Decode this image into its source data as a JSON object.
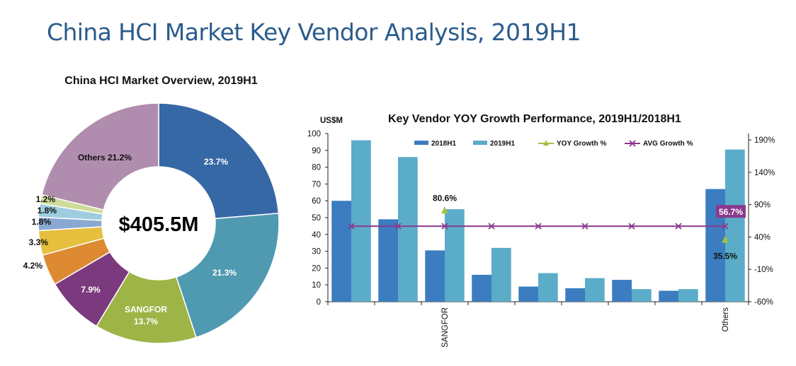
{
  "header": {
    "title": "China HCI Market Key Vendor Analysis, 2019H1"
  },
  "chart_data": [
    {
      "type": "pie",
      "title": "China HCI Market Overview, 2019H1",
      "center_label": "$405.5M",
      "slices": [
        {
          "label": "",
          "display": "23.7%",
          "value": 23.7,
          "color": "#3568a5"
        },
        {
          "label": "",
          "display": "21.3%",
          "value": 21.3,
          "color": "#4f9ab0"
        },
        {
          "label": "SANGFOR",
          "display": "13.7%",
          "value": 13.7,
          "color": "#9eb446"
        },
        {
          "label": "",
          "display": "7.9%",
          "value": 7.9,
          "color": "#7c3a7e"
        },
        {
          "label": "",
          "display": "4.2%",
          "value": 4.2,
          "color": "#dd8a32"
        },
        {
          "label": "",
          "display": "3.3%",
          "value": 3.3,
          "color": "#e5bf3d"
        },
        {
          "label": "",
          "display": "1.8%",
          "value": 1.8,
          "color": "#8aa9d2"
        },
        {
          "label": "",
          "display": "1.8%",
          "value": 1.8,
          "color": "#9ecde0"
        },
        {
          "label": "",
          "display": "1.2%",
          "value": 1.2,
          "color": "#cedc98"
        },
        {
          "label": "Others",
          "display": "Others 21.2%",
          "value": 21.2,
          "color": "#b08dae"
        }
      ]
    },
    {
      "type": "bar",
      "title": "Key Vendor YOY Growth Performance, 2019H1/2018H1",
      "ylabel": "US$M",
      "ylim": [
        0,
        100
      ],
      "y_ticks": [
        0,
        10,
        20,
        30,
        40,
        50,
        60,
        70,
        80,
        90,
        100
      ],
      "y2lim": [
        -60,
        200
      ],
      "y2_ticks": [
        "-60%",
        "-10%",
        "40%",
        "90%",
        "140%",
        "190%"
      ],
      "y2_tick_values": [
        -60,
        -10,
        40,
        90,
        140,
        190
      ],
      "categories": [
        "",
        "",
        "SANGFOR",
        "",
        "",
        "",
        "",
        "",
        "Others"
      ],
      "series": [
        {
          "name": "2018H1",
          "color": "#3b7dc0",
          "values": [
            60,
            49,
            30.5,
            16,
            9,
            8,
            13,
            6.5,
            67
          ]
        },
        {
          "name": "2019H1",
          "color": "#5bacc8",
          "values": [
            96,
            86,
            55,
            32,
            17,
            14,
            7.5,
            7.5,
            90.5
          ]
        }
      ],
      "yoy_growth": {
        "name": "YOY Growth %",
        "color": "#a2c23f",
        "points": [
          {
            "category": "SANGFOR",
            "value": 80.6,
            "label": "80.6%"
          },
          {
            "category": "Others",
            "value": 35.5,
            "label": "35.5%"
          }
        ]
      },
      "avg_growth": {
        "name": "AVG Growth %",
        "color": "#8a3a8c",
        "value": 56.7,
        "label": "56.7%"
      },
      "legend": [
        "2018H1",
        "2019H1",
        "YOY Growth %",
        "AVG Growth %"
      ]
    }
  ]
}
